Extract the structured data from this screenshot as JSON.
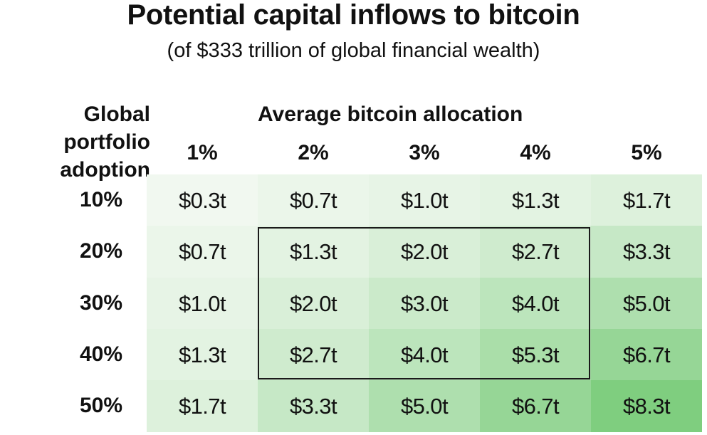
{
  "header": {
    "title": "Potential capital inflows to bitcoin",
    "subtitle": "(of $333 trillion of global financial wealth)"
  },
  "table": {
    "row_header_line1": "Global portfolio",
    "row_header_line2": "adoption",
    "col_header": "Average bitcoin allocation",
    "columns": [
      "1%",
      "2%",
      "3%",
      "4%",
      "5%"
    ],
    "rows": [
      {
        "label": "10%",
        "cells": [
          "$0.3t",
          "$0.7t",
          "$1.0t",
          "$1.3t",
          "$1.7t"
        ]
      },
      {
        "label": "20%",
        "cells": [
          "$0.7t",
          "$1.3t",
          "$2.0t",
          "$2.7t",
          "$3.3t"
        ]
      },
      {
        "label": "30%",
        "cells": [
          "$1.0t",
          "$2.0t",
          "$3.0t",
          "$4.0t",
          "$5.0t"
        ]
      },
      {
        "label": "40%",
        "cells": [
          "$1.3t",
          "$2.7t",
          "$4.0t",
          "$5.3t",
          "$6.7t"
        ]
      },
      {
        "label": "50%",
        "cells": [
          "$1.7t",
          "$3.3t",
          "$5.0t",
          "$6.7t",
          "$8.3t"
        ]
      }
    ]
  },
  "colors": {
    "text": "#111111",
    "cell_light": "#f1f8f0",
    "cell_dark": "#7fce7f",
    "highlight_border": "#1a1a1a"
  },
  "chart_data": {
    "type": "heatmap",
    "title": "Potential capital inflows to bitcoin",
    "subtitle": "(of $333 trillion of global financial wealth)",
    "xlabel": "Average bitcoin allocation",
    "ylabel": "Global portfolio adoption",
    "x": [
      "1%",
      "2%",
      "3%",
      "4%",
      "5%"
    ],
    "y": [
      "10%",
      "20%",
      "30%",
      "40%",
      "50%"
    ],
    "unit": "trillion USD",
    "values": [
      [
        0.3,
        0.7,
        1.0,
        1.3,
        1.7
      ],
      [
        0.7,
        1.3,
        2.0,
        2.7,
        3.3
      ],
      [
        1.0,
        2.0,
        3.0,
        4.0,
        5.0
      ],
      [
        1.3,
        2.7,
        4.0,
        5.3,
        6.7
      ],
      [
        1.7,
        3.3,
        5.0,
        6.7,
        8.3
      ]
    ],
    "highlighted_region": {
      "rows": [
        "20%",
        "30%",
        "40%"
      ],
      "columns": [
        "2%",
        "3%",
        "4%"
      ]
    },
    "color_scale": "light to dark green by value"
  }
}
